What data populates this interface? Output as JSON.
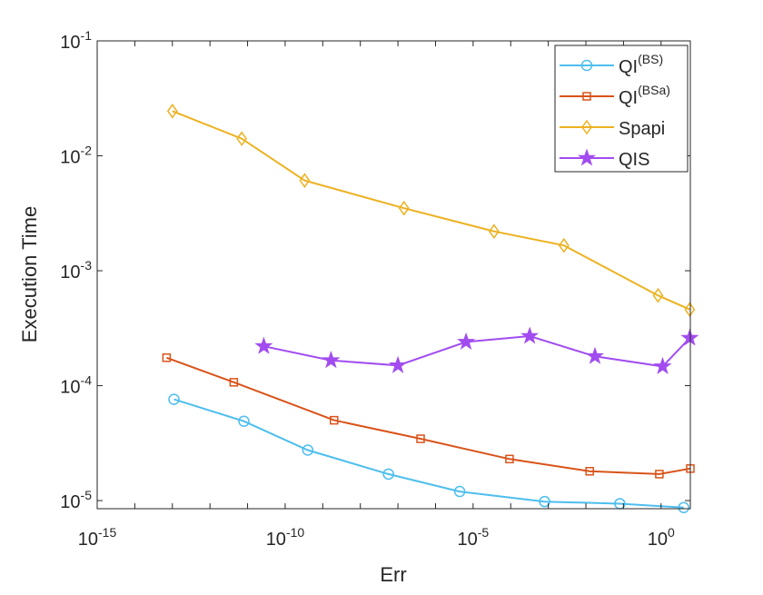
{
  "chart_data": {
    "type": "line",
    "title": "",
    "xlabel": "Err",
    "ylabel": "Execution Time",
    "xscale": "log",
    "yscale": "log",
    "xlim": [
      1e-15,
      6
    ],
    "ylim": [
      8.5e-06,
      0.1
    ],
    "xticks": [
      {
        "v": 1e-15,
        "base": "10",
        "exp": "-15"
      },
      {
        "v": 1e-10,
        "base": "10",
        "exp": "-10"
      },
      {
        "v": 1e-05,
        "base": "10",
        "exp": "-5"
      },
      {
        "v": 1,
        "base": "10",
        "exp": "0"
      }
    ],
    "yticks": [
      {
        "v": 1e-05,
        "base": "10",
        "exp": "-5"
      },
      {
        "v": 0.0001,
        "base": "10",
        "exp": "-4"
      },
      {
        "v": 0.001,
        "base": "10",
        "exp": "-3"
      },
      {
        "v": 0.01,
        "base": "10",
        "exp": "-2"
      },
      {
        "v": 0.1,
        "base": "10",
        "exp": "-1"
      }
    ],
    "grid": false,
    "legend_position": "top-right",
    "series": [
      {
        "name": "QI",
        "sup": "(BS)",
        "color": "#4DBEEE",
        "marker": "circle",
        "x": [
          1.1e-13,
          8e-12,
          4e-10,
          5.6e-08,
          4.4e-06,
          0.0008,
          0.08,
          4
        ],
        "y": [
          7.6e-05,
          4.9e-05,
          2.75e-05,
          1.7e-05,
          1.2e-05,
          9.8e-06,
          9.4e-06,
          8.7e-06
        ]
      },
      {
        "name": "QI",
        "sup": "(BSa)",
        "color": "#D95319",
        "marker": "square",
        "x": [
          7e-14,
          4.3e-12,
          2e-09,
          4e-07,
          9.3e-05,
          0.0126,
          0.9,
          6
        ],
        "y": [
          0.000175,
          0.000107,
          5e-05,
          3.45e-05,
          2.3e-05,
          1.8e-05,
          1.7e-05,
          1.9e-05
        ]
      },
      {
        "name": "Spapi",
        "sup": "",
        "color": "#EDB120",
        "marker": "diamond",
        "x": [
          1e-13,
          7e-12,
          3.3e-10,
          1.45e-07,
          3.6e-05,
          0.0026,
          0.83,
          5.8
        ],
        "y": [
          0.0245,
          0.0141,
          0.0061,
          0.0035,
          0.0022,
          0.00166,
          0.00061,
          0.00046
        ]
      },
      {
        "name": "QIS",
        "sup": "",
        "color": "#A24CF0",
        "marker": "star",
        "x": [
          2.7e-11,
          1.66e-09,
          1e-07,
          6.5e-06,
          0.00032,
          0.0174,
          1.1,
          5.8
        ],
        "y": [
          0.00022,
          0.000166,
          0.00015,
          0.00024,
          0.00027,
          0.00018,
          0.000147,
          0.00026
        ]
      }
    ]
  }
}
